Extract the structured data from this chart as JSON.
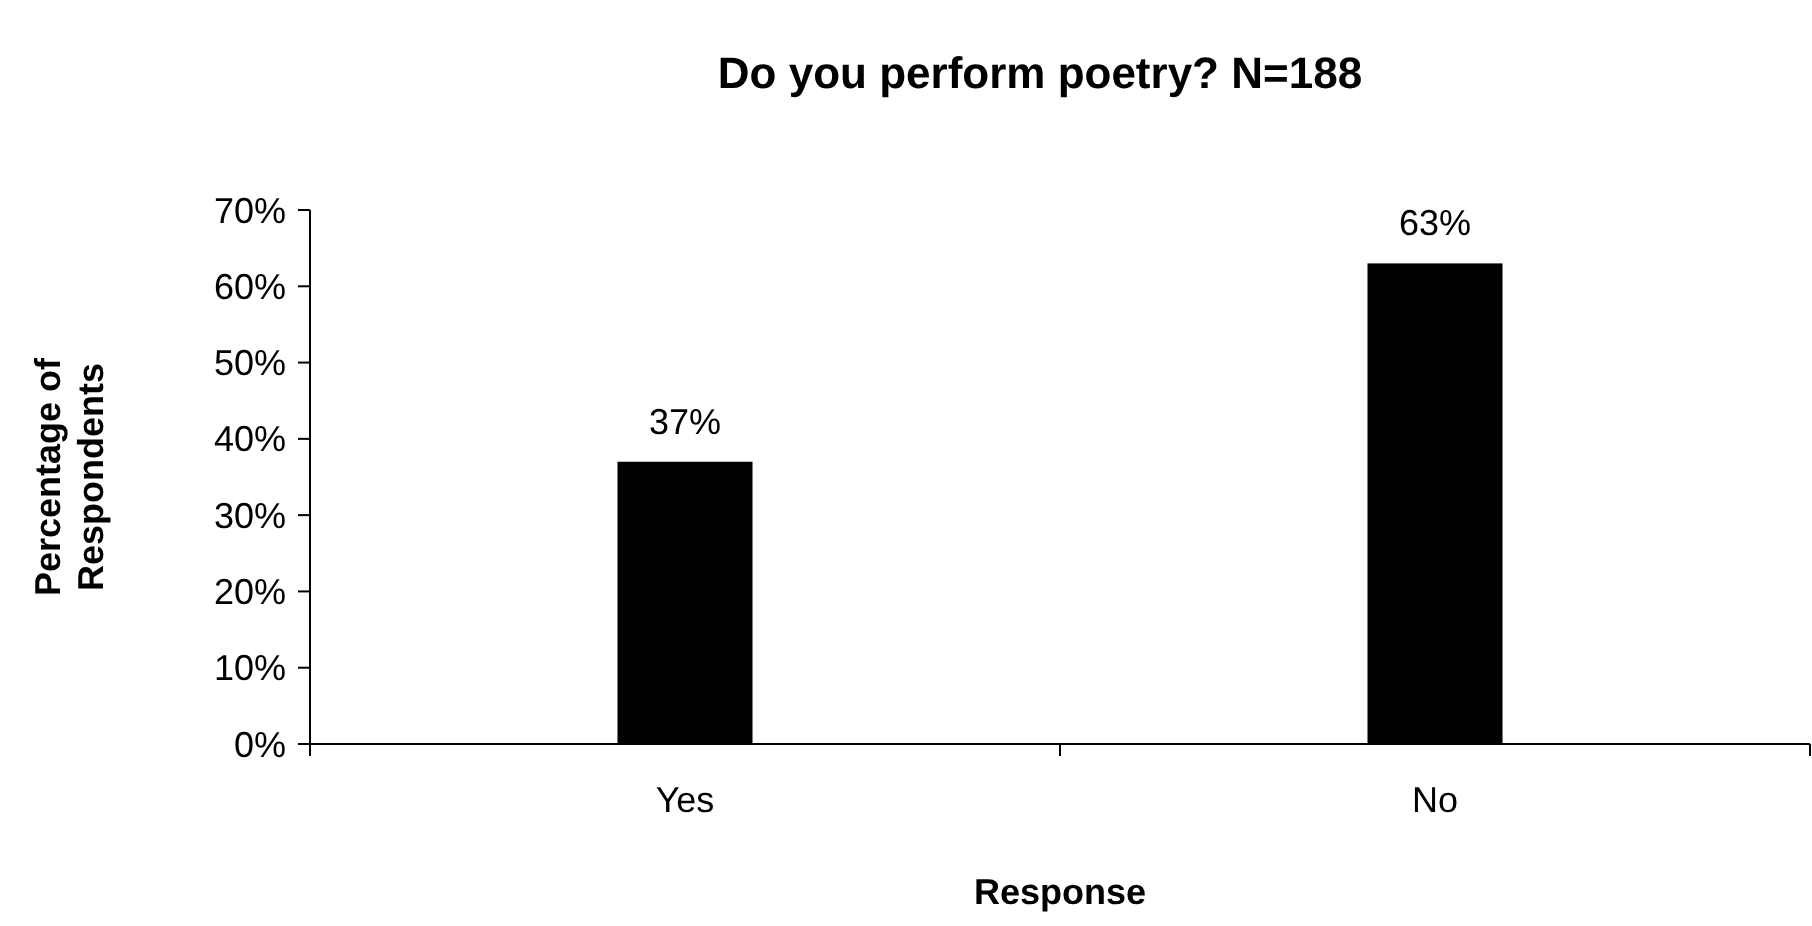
{
  "chart_data": {
    "type": "bar",
    "title": "Do you perform poetry? N=188",
    "xlabel": "Response",
    "ylabel": "Percentage of Respondents",
    "categories": [
      "Yes",
      "No"
    ],
    "values": [
      37,
      63
    ],
    "color": "#000000",
    "value_labels": [
      "37%",
      "63%"
    ],
    "ylim": [
      0,
      70
    ],
    "yticks": [
      {
        "value": 0,
        "label": "0%"
      },
      {
        "value": 10,
        "label": "10%"
      },
      {
        "value": 20,
        "label": "20%"
      },
      {
        "value": 30,
        "label": "30%"
      },
      {
        "value": 40,
        "label": "40%"
      },
      {
        "value": 50,
        "label": "50%"
      },
      {
        "value": 60,
        "label": "60%"
      },
      {
        "value": 70,
        "label": "70%"
      }
    ],
    "grid": false
  }
}
